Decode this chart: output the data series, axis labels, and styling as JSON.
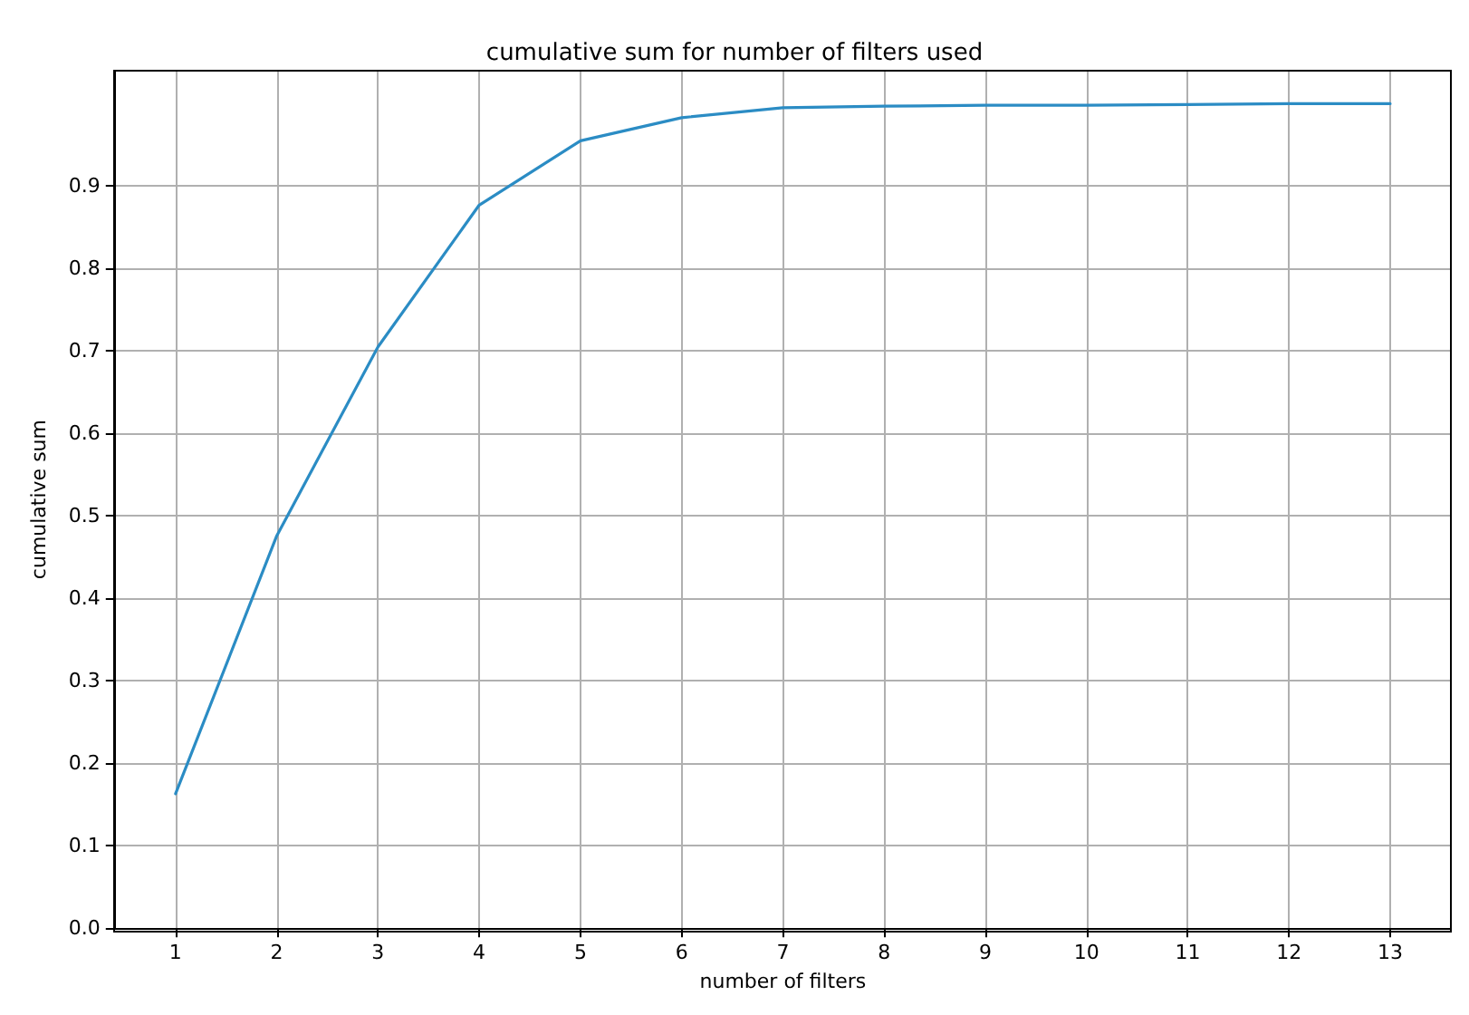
{
  "chart_data": {
    "type": "line",
    "title": "cumulative sum for number of filters used",
    "xlabel": "number of filters",
    "ylabel": "cumulative sum",
    "x": [
      1,
      2,
      3,
      4,
      5,
      6,
      7,
      8,
      9,
      10,
      11,
      12,
      13
    ],
    "series": [
      {
        "color": "#2b8cc4",
        "values": [
          0.163,
          0.476,
          0.705,
          0.877,
          0.955,
          0.983,
          0.995,
          0.997,
          0.998,
          0.998,
          0.999,
          1.0,
          1.0
        ]
      }
    ],
    "xlim": [
      0.4,
      13.6
    ],
    "xticks": [
      1,
      2,
      3,
      4,
      5,
      6,
      7,
      8,
      9,
      10,
      11,
      12,
      13
    ],
    "ylim": [
      0,
      1.04
    ],
    "yticks": [
      "0.0",
      0.1,
      0.2,
      0.3,
      0.4,
      0.5,
      0.6,
      0.7,
      0.8,
      0.9
    ],
    "grid": true,
    "marker": "none",
    "line_style": "solid"
  }
}
